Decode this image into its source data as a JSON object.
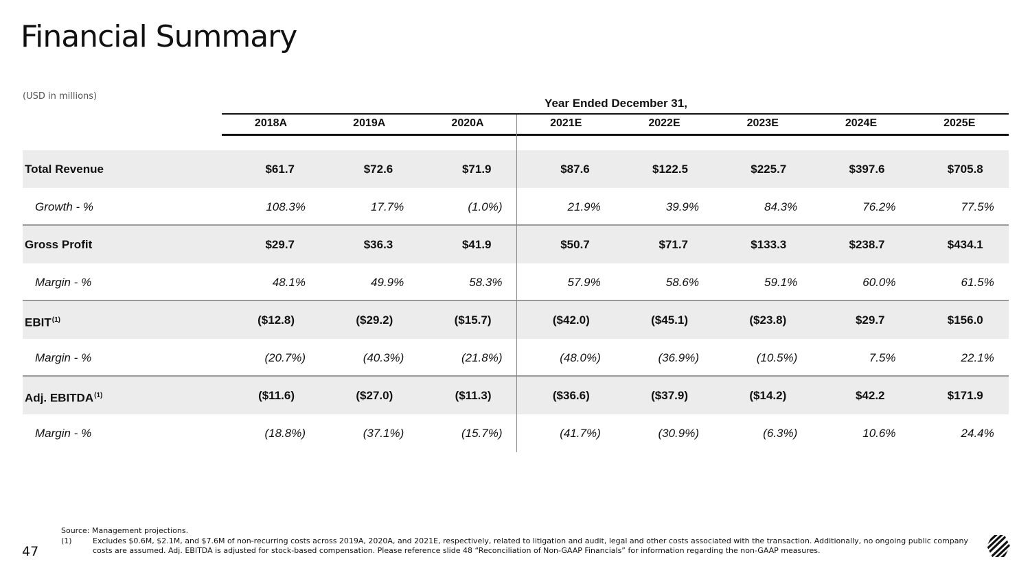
{
  "page": {
    "title": "Financial Summary",
    "units": "(USD in millions)",
    "period_header": "Year Ended December 31,",
    "page_number": "47"
  },
  "table": {
    "years": [
      "2018A",
      "2019A",
      "2020A",
      "2021E",
      "2022E",
      "2023E",
      "2024E",
      "2025E"
    ],
    "rows": [
      {
        "label": "Total Revenue",
        "sup": "",
        "type": "main",
        "values": [
          "$61.7",
          "$72.6",
          "$71.9",
          "$87.6",
          "$122.5",
          "$225.7",
          "$397.6",
          "$705.8"
        ]
      },
      {
        "label": "Growth - %",
        "sup": "",
        "type": "sub",
        "values": [
          "108.3%",
          "17.7%",
          "(1.0%)",
          "21.9%",
          "39.9%",
          "84.3%",
          "76.2%",
          "77.5%"
        ]
      },
      {
        "label": "Gross Profit",
        "sup": "",
        "type": "main",
        "values": [
          "$29.7",
          "$36.3",
          "$41.9",
          "$50.7",
          "$71.7",
          "$133.3",
          "$238.7",
          "$434.1"
        ]
      },
      {
        "label": "Margin - %",
        "sup": "",
        "type": "sub",
        "values": [
          "48.1%",
          "49.9%",
          "58.3%",
          "57.9%",
          "58.6%",
          "59.1%",
          "60.0%",
          "61.5%"
        ]
      },
      {
        "label": "EBIT",
        "sup": "(1)",
        "type": "main",
        "values": [
          "($12.8)",
          "($29.2)",
          "($15.7)",
          "($42.0)",
          "($45.1)",
          "($23.8)",
          "$29.7",
          "$156.0"
        ]
      },
      {
        "label": "Margin - %",
        "sup": "",
        "type": "sub",
        "values": [
          "(20.7%)",
          "(40.3%)",
          "(21.8%)",
          "(48.0%)",
          "(36.9%)",
          "(10.5%)",
          "7.5%",
          "22.1%"
        ]
      },
      {
        "label": "Adj. EBITDA",
        "sup": "(1)",
        "type": "main",
        "values": [
          "($11.6)",
          "($27.0)",
          "($11.3)",
          "($36.6)",
          "($37.9)",
          "($14.2)",
          "$42.2",
          "$171.9"
        ]
      },
      {
        "label": "Margin - %",
        "sup": "",
        "type": "sub",
        "values": [
          "(18.8%)",
          "(37.1%)",
          "(15.7%)",
          "(41.7%)",
          "(30.9%)",
          "(6.3%)",
          "10.6%",
          "24.4%"
        ]
      }
    ]
  },
  "footnotes": {
    "source": "Source: Management projections.",
    "note_1_marker": "(1)",
    "note_1_text": "Excludes $0.6M, $2.1M, and $7.6M of non-recurring costs across 2019A, 2020A, and 2021E, respectively, related to litigation and audit, legal and other costs associated with the transaction. Additionally, no ongoing public company costs are assumed. Adj. EBITDA is adjusted for stock-based compensation. Please reference slide 48 “Reconciliation of Non-GAAP Financials” for information regarding the non-GAAP measures."
  },
  "logo": {
    "icon": "striped-hexagon-logo-icon",
    "color": "#111111"
  },
  "colors": {
    "row_shade": "#ececec",
    "rule": "#111111",
    "divider": "#888888"
  }
}
